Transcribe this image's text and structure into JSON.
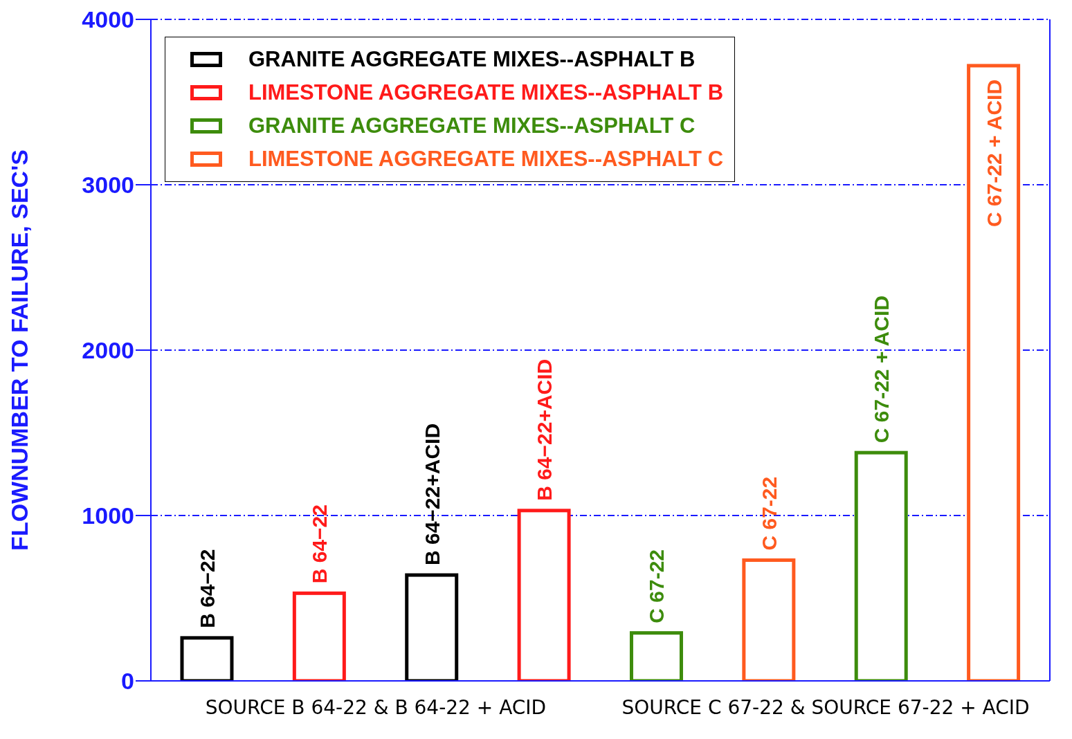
{
  "chart_data": {
    "type": "bar",
    "ylabel": "FLOWNUMBER TO FAILURE, SEC'S",
    "categories": [
      "B 64−22",
      "B  64−22",
      "B 64−22+ACID",
      "B  64−22+ACID",
      "C  67-22",
      "C 67-22",
      "C  67-22 + ACID",
      "C 67-22 + ACID"
    ],
    "series": [
      {
        "name": "GRANITE AGGREGATE MIXES--ASPHALT B",
        "color": "#000000",
        "values": [
          260,
          null,
          640,
          null,
          null,
          null,
          null,
          null
        ]
      },
      {
        "name": "LIMESTONE AGGREGATE MIXES--ASPHALT B",
        "color": "#ff1a1a",
        "values": [
          null,
          530,
          null,
          1030,
          null,
          null,
          null,
          null
        ]
      },
      {
        "name": "GRANITE AGGREGATE MIXES--ASPHALT C",
        "color": "#3d8c0c",
        "values": [
          null,
          null,
          null,
          null,
          290,
          null,
          1380,
          null
        ]
      },
      {
        "name": "LIMESTONE AGGREGATE MIXES--ASPHALT C",
        "color": "#ff5a1f",
        "values": [
          null,
          null,
          null,
          null,
          null,
          730,
          null,
          3720
        ]
      }
    ],
    "annotations": [
      "SOURCE B 64-22 & B 64-22 + ACID",
      "SOURCE C 67-22 & SOURCE 67-22 + ACID"
    ],
    "ylim": [
      0,
      4000
    ],
    "yticks": [
      0,
      1000,
      2000,
      3000,
      4000
    ],
    "grid": "y",
    "legend": "top left"
  }
}
